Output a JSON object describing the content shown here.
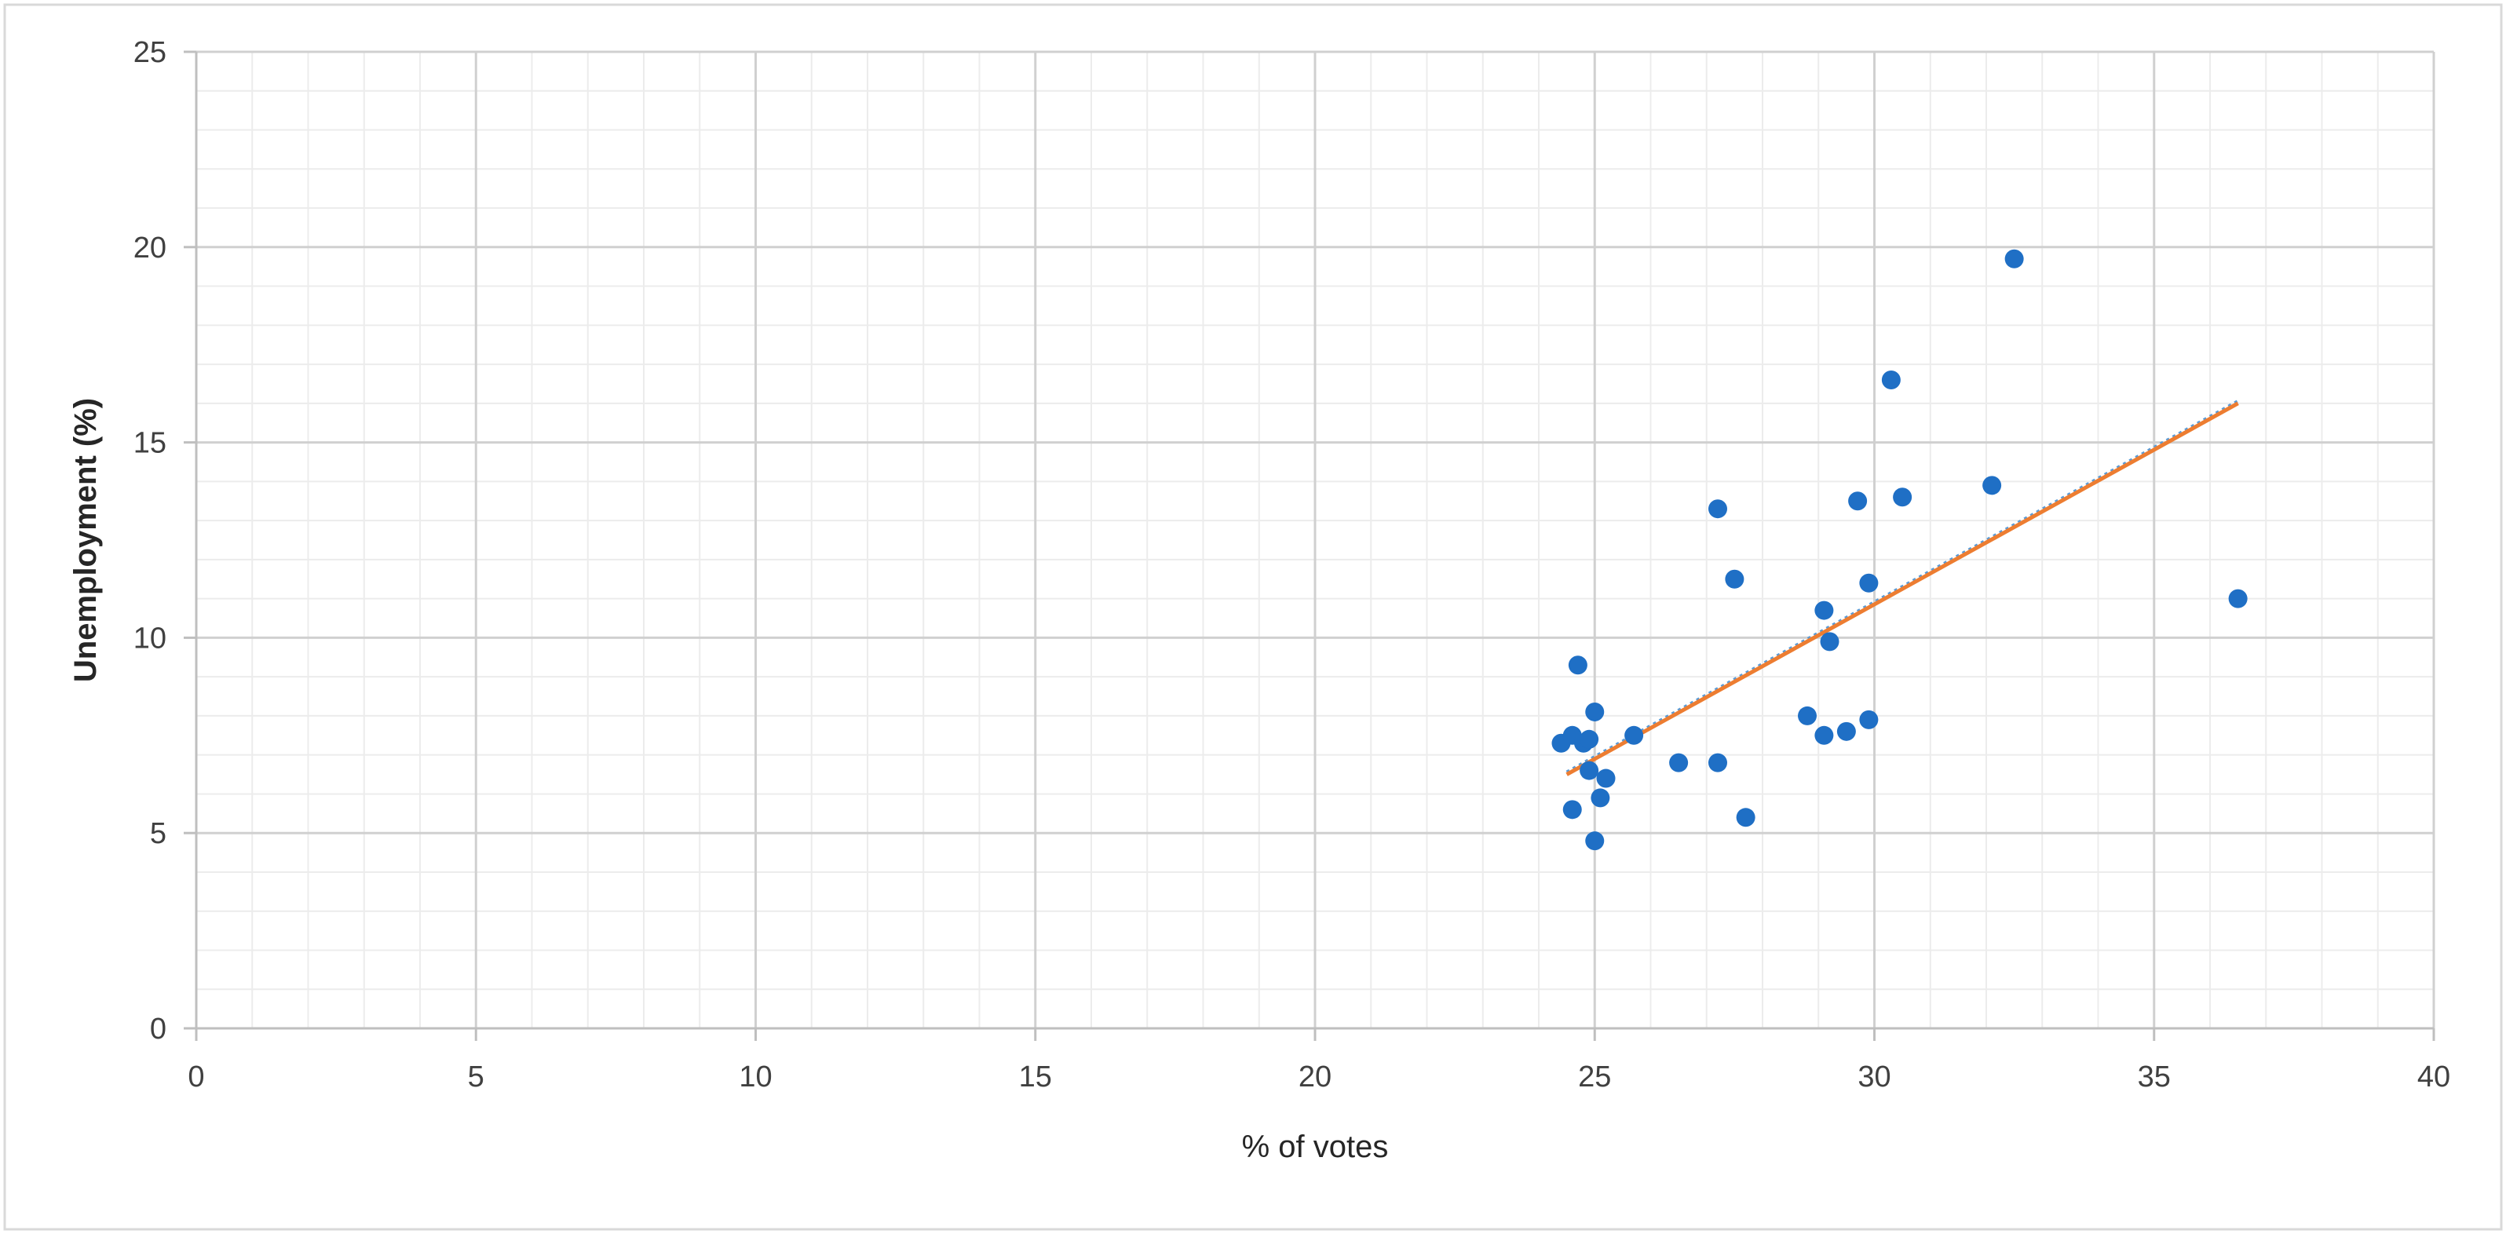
{
  "colors": {
    "background": "#ffffff",
    "frame": "#d9d9d9",
    "major_grid": "#d0d0d0",
    "minor_grid": "#ececec",
    "axis_line": "#bfbfbf",
    "points": "#1f6fc5",
    "trendline": "#ed7d31",
    "trendline_dotted": "#5b9bd5"
  },
  "chart_data": {
    "type": "scatter",
    "title": "",
    "xlabel": "% of votes",
    "ylabel": "Unemployment (%)",
    "xlim": [
      0,
      40
    ],
    "ylim": [
      0,
      25
    ],
    "x_ticks": [
      "0",
      "5",
      "10",
      "15",
      "20",
      "25",
      "30",
      "35",
      "40"
    ],
    "y_ticks": [
      "0",
      "5",
      "10",
      "15",
      "20",
      "25"
    ],
    "grid": "major and minor",
    "legend": "none",
    "points": [
      {
        "x": 24.4,
        "y": 7.3
      },
      {
        "x": 24.6,
        "y": 7.5
      },
      {
        "x": 24.6,
        "y": 5.6
      },
      {
        "x": 24.7,
        "y": 9.3
      },
      {
        "x": 24.8,
        "y": 7.3
      },
      {
        "x": 24.9,
        "y": 7.4
      },
      {
        "x": 24.9,
        "y": 6.6
      },
      {
        "x": 25.0,
        "y": 8.1
      },
      {
        "x": 25.0,
        "y": 4.8
      },
      {
        "x": 25.1,
        "y": 5.9
      },
      {
        "x": 25.2,
        "y": 6.4
      },
      {
        "x": 25.7,
        "y": 7.5
      },
      {
        "x": 26.5,
        "y": 6.8
      },
      {
        "x": 27.2,
        "y": 13.3
      },
      {
        "x": 27.2,
        "y": 6.8
      },
      {
        "x": 27.5,
        "y": 11.5
      },
      {
        "x": 27.7,
        "y": 5.4
      },
      {
        "x": 28.8,
        "y": 8.0
      },
      {
        "x": 29.1,
        "y": 10.7
      },
      {
        "x": 29.1,
        "y": 7.5
      },
      {
        "x": 29.2,
        "y": 9.9
      },
      {
        "x": 29.5,
        "y": 7.6
      },
      {
        "x": 29.7,
        "y": 13.5
      },
      {
        "x": 29.9,
        "y": 11.4
      },
      {
        "x": 29.9,
        "y": 7.9
      },
      {
        "x": 30.3,
        "y": 16.6
      },
      {
        "x": 30.5,
        "y": 13.6
      },
      {
        "x": 32.1,
        "y": 13.9
      },
      {
        "x": 32.5,
        "y": 19.7
      },
      {
        "x": 36.5,
        "y": 11.0
      }
    ],
    "trendline": {
      "type": "linear",
      "x1": 24.5,
      "y1": 6.5,
      "x2": 36.5,
      "y2": 16.0
    }
  }
}
